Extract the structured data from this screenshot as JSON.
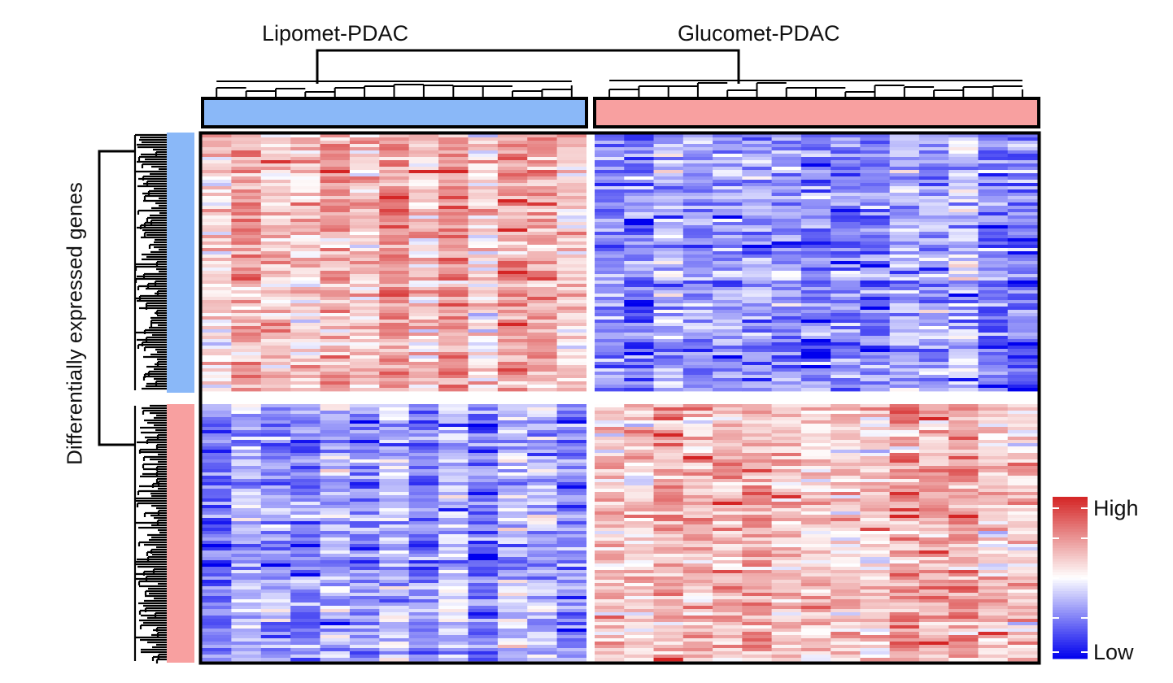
{
  "chart_data": {
    "type": "heatmap",
    "column_groups": [
      {
        "name": "Lipomet-PDAC",
        "color": "#8ab8f8",
        "n_samples": 13
      },
      {
        "name": "Glucomet-PDAC",
        "color": "#f8a0a0",
        "n_samples": 15
      }
    ],
    "row_groups": [
      {
        "color": "#8ab8f8",
        "pattern": "high in Lipomet-PDAC, low in Glucomet-PDAC"
      },
      {
        "color": "#f8a0a0",
        "pattern": "low in Lipomet-PDAC, high in Glucomet-PDAC"
      }
    ],
    "ylabel": "Differentially expressed genes",
    "xlabel": "",
    "color_scale": {
      "low_label": "Low",
      "high_label": "High",
      "low_color": "#0000ee",
      "mid_color": "#ffffff",
      "high_color": "#d42424"
    },
    "row_dendrogram": true,
    "column_dendrogram": true,
    "border_color": "#000000"
  }
}
